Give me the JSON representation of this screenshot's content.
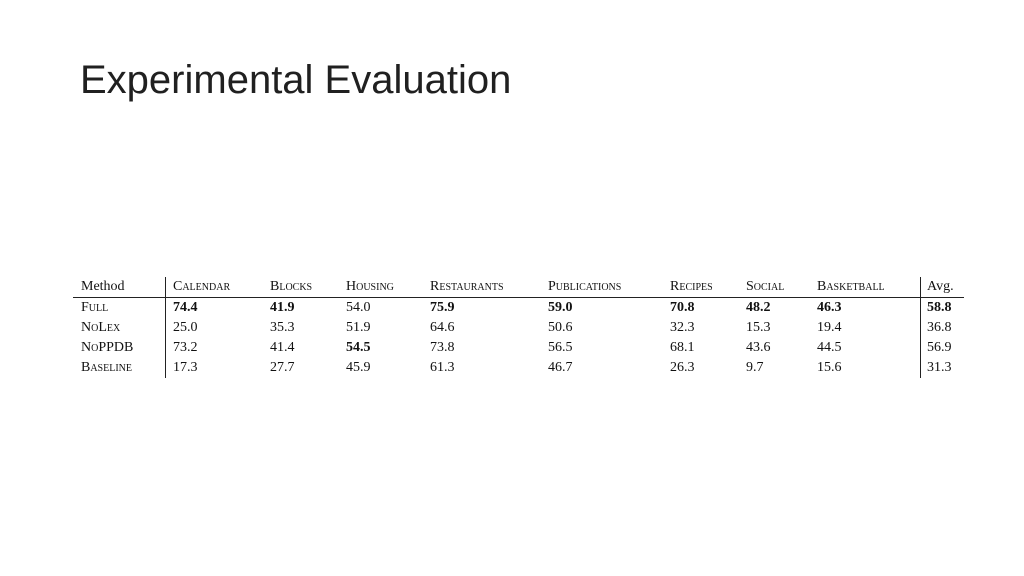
{
  "slide": {
    "title": "Experimental Evaluation"
  },
  "table": {
    "headers": {
      "method": "Method",
      "calendar": "Calendar",
      "blocks": "Blocks",
      "housing": "Housing",
      "restaurants": "Restaurants",
      "publications": "Publications",
      "recipes": "Recipes",
      "social": "Social",
      "basketball": "Basketball",
      "avg": "Avg."
    },
    "rows": [
      {
        "method": "Full",
        "calendar": "74.4",
        "blocks": "41.9",
        "housing": "54.0",
        "restaurants": "75.9",
        "publications": "59.0",
        "recipes": "70.8",
        "social": "48.2",
        "basketball": "46.3",
        "avg": "58.8"
      },
      {
        "method": "NoLex",
        "calendar": "25.0",
        "blocks": "35.3",
        "housing": "51.9",
        "restaurants": "64.6",
        "publications": "50.6",
        "recipes": "32.3",
        "social": "15.3",
        "basketball": "19.4",
        "avg": "36.8"
      },
      {
        "method": "NoPPDB",
        "calendar": "73.2",
        "blocks": "41.4",
        "housing": "54.5",
        "restaurants": "73.8",
        "publications": "56.5",
        "recipes": "68.1",
        "social": "43.6",
        "basketball": "44.5",
        "avg": "56.9"
      },
      {
        "method": "Baseline",
        "calendar": "17.3",
        "blocks": "27.7",
        "housing": "45.9",
        "restaurants": "61.3",
        "publications": "46.7",
        "recipes": "26.3",
        "social": "9.7",
        "basketball": "15.6",
        "avg": "31.3"
      }
    ]
  }
}
